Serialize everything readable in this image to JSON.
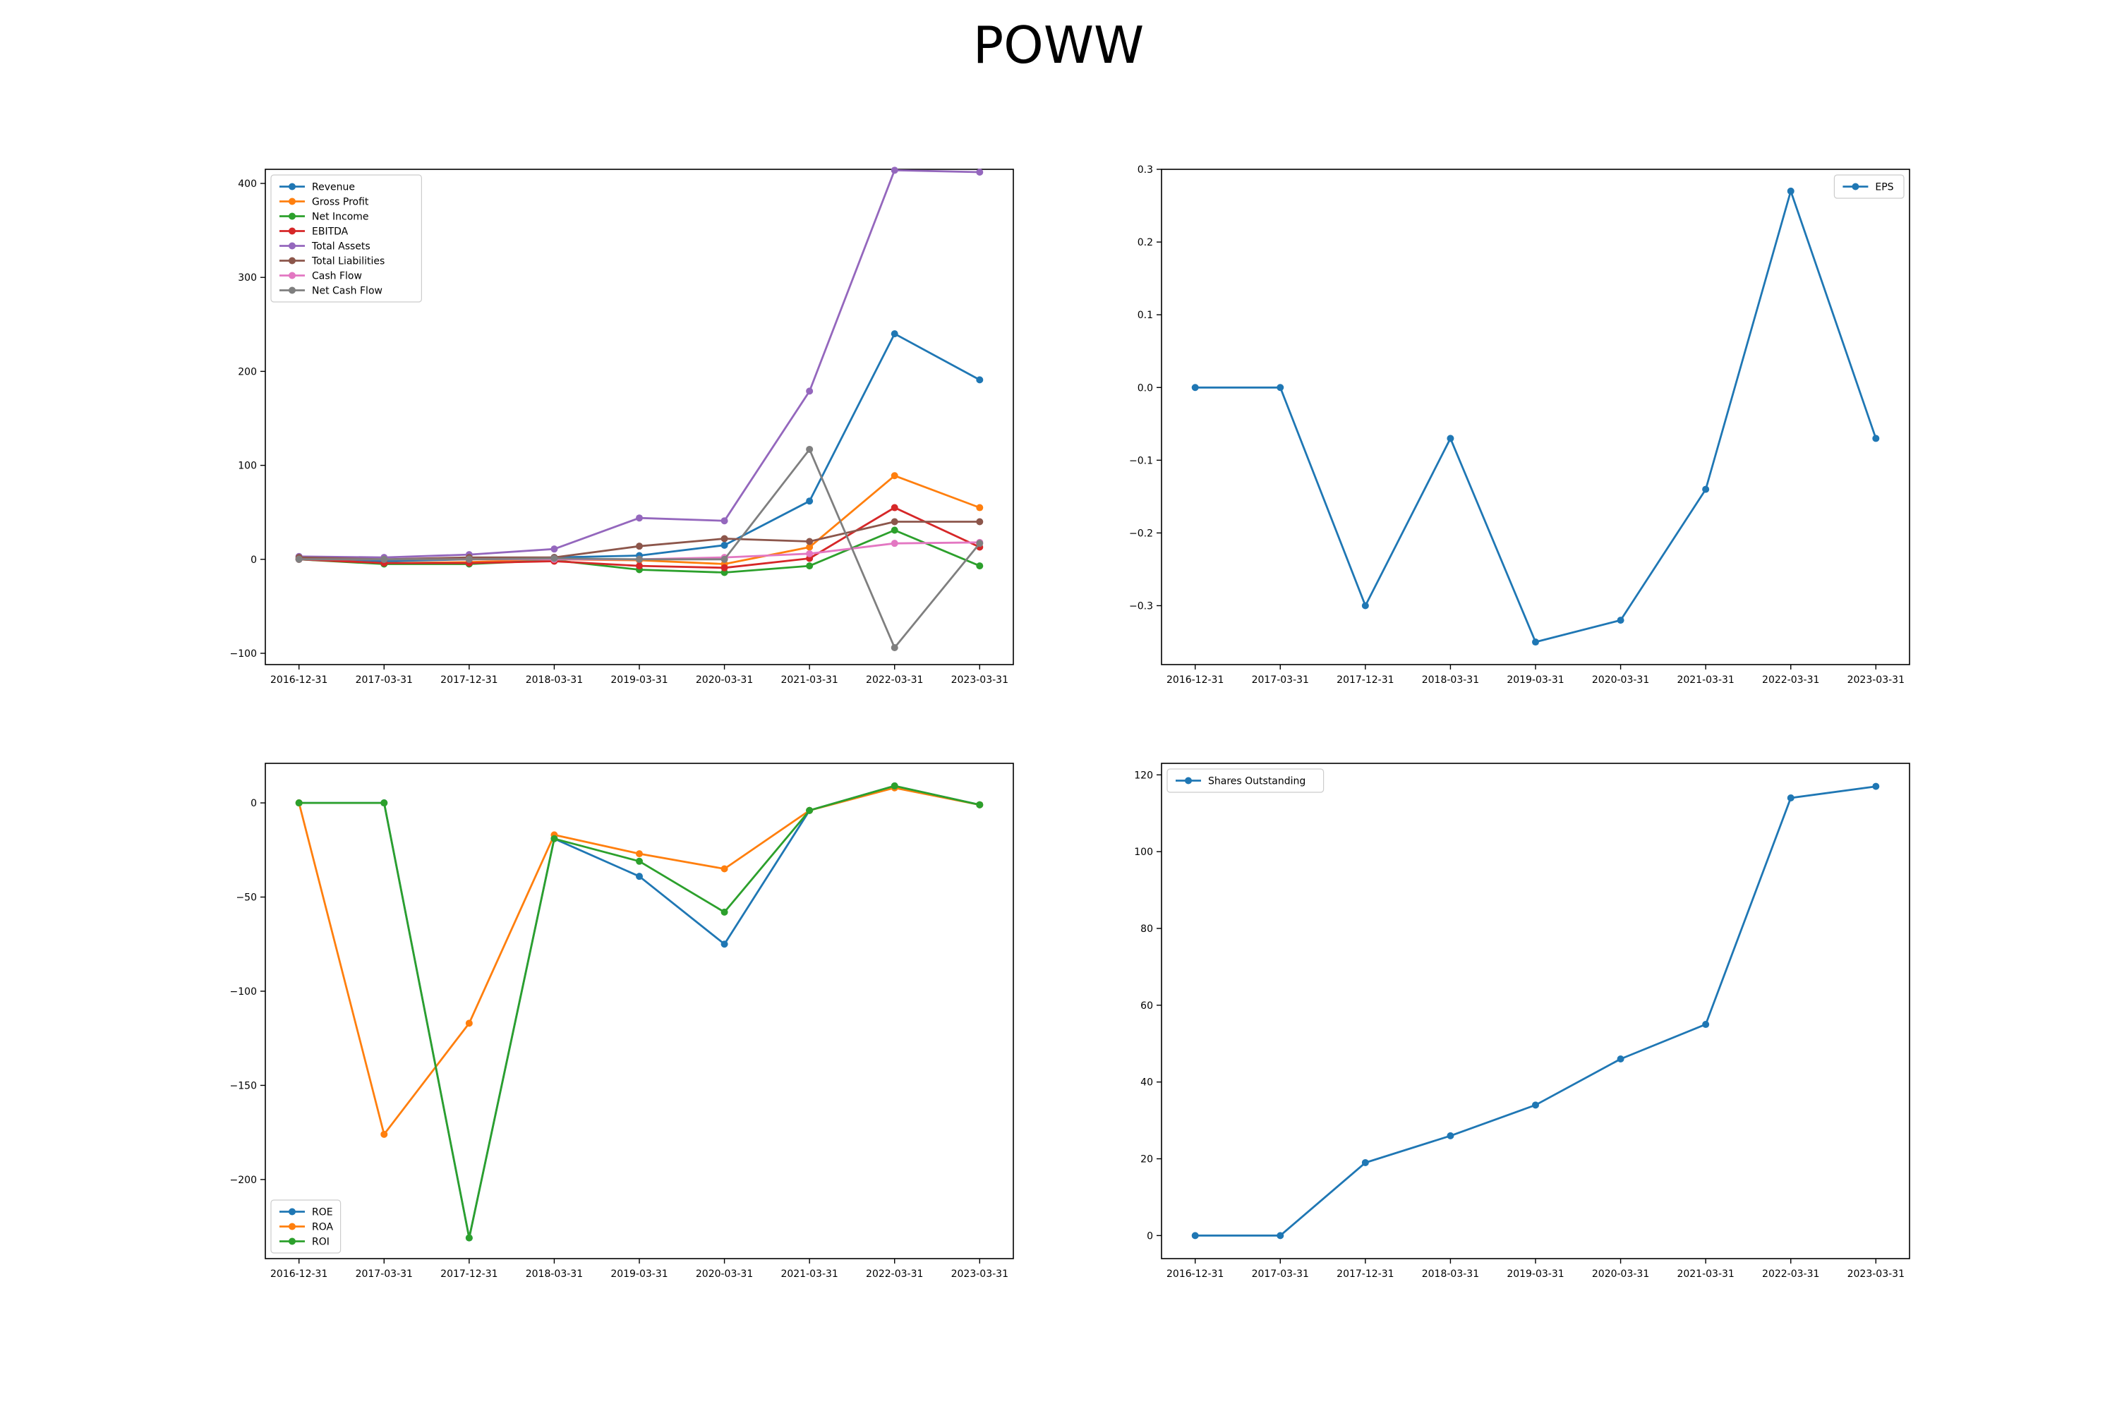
{
  "title": "POWW",
  "chart_data": [
    {
      "type": "line",
      "x": [
        "2016-12-31",
        "2017-03-31",
        "2017-12-31",
        "2018-03-31",
        "2019-03-31",
        "2020-03-31",
        "2021-03-31",
        "2022-03-31",
        "2023-03-31"
      ],
      "ylim": [
        -112,
        415
      ],
      "yticks": [
        -100,
        0,
        100,
        200,
        300,
        400
      ],
      "legend_position": "upper-left",
      "series": [
        {
          "name": "Revenue",
          "color": "#1f77b4",
          "values": [
            0,
            -2,
            0,
            2,
            4,
            15,
            62,
            240,
            191
          ]
        },
        {
          "name": "Gross Profit",
          "color": "#ff7f0e",
          "values": [
            0,
            -4,
            -3,
            0,
            -1,
            -5,
            13,
            89,
            55
          ]
        },
        {
          "name": "Net Income",
          "color": "#2ca02c",
          "values": [
            0,
            -5,
            -5,
            -1,
            -11,
            -14,
            -7,
            31,
            -7
          ]
        },
        {
          "name": "EBITDA",
          "color": "#d62728",
          "values": [
            0,
            -4,
            -4,
            -2,
            -7,
            -9,
            1,
            55,
            13
          ]
        },
        {
          "name": "Total Assets",
          "color": "#9467bd",
          "values": [
            3,
            2,
            5,
            11,
            44,
            41,
            179,
            414,
            412
          ]
        },
        {
          "name": "Total Liabilities",
          "color": "#8c564b",
          "values": [
            2,
            0,
            2,
            2,
            14,
            22,
            19,
            40,
            40
          ]
        },
        {
          "name": "Cash Flow",
          "color": "#e377c2",
          "values": [
            0,
            0,
            0,
            0,
            0,
            2,
            6,
            17,
            18
          ]
        },
        {
          "name": "Net Cash Flow",
          "color": "#7f7f7f",
          "values": [
            0,
            0,
            0,
            1,
            0,
            0,
            117,
            -94,
            17
          ]
        }
      ]
    },
    {
      "type": "line",
      "x": [
        "2016-12-31",
        "2017-03-31",
        "2017-12-31",
        "2018-03-31",
        "2019-03-31",
        "2020-03-31",
        "2021-03-31",
        "2022-03-31",
        "2023-03-31"
      ],
      "ylim": [
        -0.381,
        0.3
      ],
      "yticks": [
        -0.3,
        -0.2,
        -0.1,
        0.0,
        0.1,
        0.2,
        0.3
      ],
      "ytick_labels": [
        "−0.3",
        "−0.2",
        "−0.1",
        "0.0",
        "0.1",
        "0.2",
        "0.3"
      ],
      "legend_position": "upper-right",
      "series": [
        {
          "name": "EPS",
          "color": "#1f77b4",
          "values": [
            0.0,
            0.0,
            -0.3,
            -0.07,
            -0.35,
            -0.32,
            -0.14,
            0.27,
            -0.07
          ]
        }
      ]
    },
    {
      "type": "line",
      "x": [
        "2016-12-31",
        "2017-03-31",
        "2017-12-31",
        "2018-03-31",
        "2019-03-31",
        "2020-03-31",
        "2021-03-31",
        "2022-03-31",
        "2023-03-31"
      ],
      "ylim": [
        -242,
        21
      ],
      "yticks": [
        -200,
        -150,
        -100,
        -50,
        0
      ],
      "legend_position": "lower-left",
      "series": [
        {
          "name": "ROE",
          "color": "#1f77b4",
          "values": [
            0,
            0,
            -231,
            -19,
            -39,
            -75,
            -4,
            9,
            -1
          ]
        },
        {
          "name": "ROA",
          "color": "#ff7f0e",
          "values": [
            0,
            -176,
            -117,
            -17,
            -27,
            -35,
            -4,
            8,
            -1
          ]
        },
        {
          "name": "ROI",
          "color": "#2ca02c",
          "values": [
            0,
            0,
            -231,
            -19,
            -31,
            -58,
            -4,
            9,
            -1
          ]
        }
      ]
    },
    {
      "type": "line",
      "x": [
        "2016-12-31",
        "2017-03-31",
        "2017-12-31",
        "2018-03-31",
        "2019-03-31",
        "2020-03-31",
        "2021-03-31",
        "2022-03-31",
        "2023-03-31"
      ],
      "ylim": [
        -6,
        123
      ],
      "yticks": [
        0,
        20,
        40,
        60,
        80,
        100,
        120
      ],
      "legend_position": "upper-left",
      "series": [
        {
          "name": "Shares Outstanding",
          "color": "#1f77b4",
          "values": [
            0,
            0,
            19,
            26,
            34,
            46,
            55,
            114,
            117
          ]
        }
      ]
    }
  ]
}
